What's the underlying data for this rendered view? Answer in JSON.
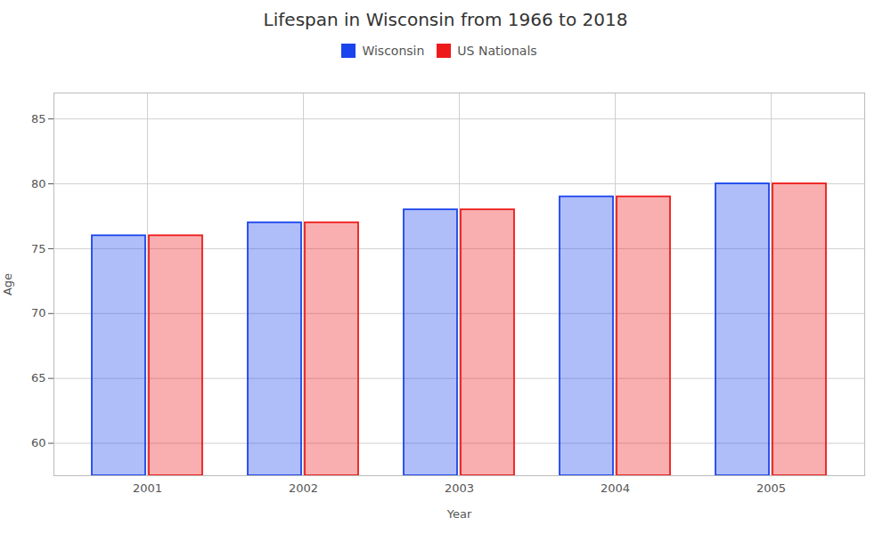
{
  "chart_data": {
    "type": "bar",
    "title": "Lifespan in Wisconsin from 1966 to 2018",
    "xlabel": "Year",
    "ylabel": "Age",
    "categories": [
      "2001",
      "2002",
      "2003",
      "2004",
      "2005"
    ],
    "series": [
      {
        "name": "Wisconsin",
        "color": "#1a44ee",
        "values": [
          76,
          77,
          78,
          79,
          80
        ]
      },
      {
        "name": "US Nationals",
        "color": "#ee1a1a",
        "values": [
          76,
          77,
          78,
          79,
          80
        ]
      }
    ],
    "ylim": [
      57.5,
      87
    ],
    "yticks": [
      60,
      65,
      70,
      75,
      80,
      85
    ],
    "grid": true,
    "legend": "top"
  }
}
